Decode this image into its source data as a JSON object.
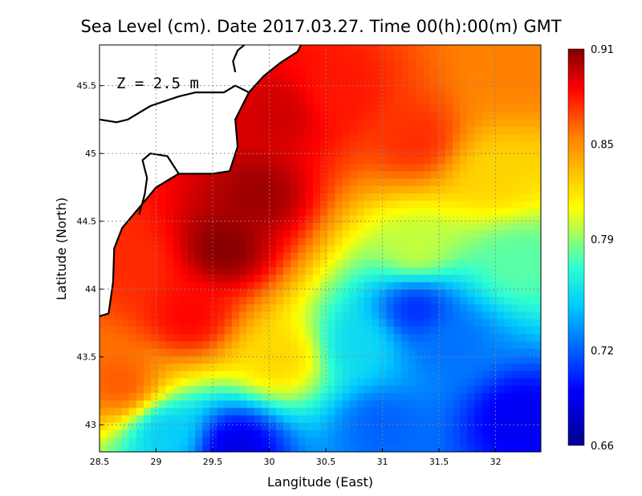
{
  "chart_data": {
    "type": "heatmap",
    "title": "Sea Level (cm). Date 2017.03.27. Time 00(h):00(m) GMT",
    "xlabel": "Langitude (East)",
    "ylabel": "Latitude (North)",
    "annotation": "Z = 2.5 m",
    "xlim": [
      28.5,
      32.4
    ],
    "ylim": [
      42.8,
      45.8
    ],
    "x_ticks": [
      28.5,
      29,
      29.5,
      30,
      30.5,
      31,
      31.5,
      32
    ],
    "x_tick_labels": [
      "28.5",
      "29",
      "29.5",
      "30",
      "30.5",
      "31",
      "31.5",
      "32"
    ],
    "y_ticks": [
      43,
      43.5,
      44,
      44.5,
      45,
      45.5
    ],
    "y_tick_labels": [
      "43",
      "43.5",
      "44",
      "44.5",
      "45",
      "45.5"
    ],
    "grid": true,
    "colorbar": {
      "min": 0.66,
      "max": 0.91,
      "ticks": [
        0.91,
        0.85,
        0.79,
        0.72,
        0.66
      ],
      "tick_labels": [
        "0.91",
        "0.85",
        "0.79",
        "0.72",
        "0.66"
      ],
      "colormap": [
        "#00008f",
        "#0000ff",
        "#00c8ff",
        "#30ffd0",
        "#ffff00",
        "#ff8000",
        "#ff0000",
        "#800000"
      ]
    },
    "field_centers": [
      {
        "lon": 29.6,
        "lat": 44.3,
        "value": 0.91
      },
      {
        "lon": 29.9,
        "lat": 44.7,
        "value": 0.905
      },
      {
        "lon": 30.1,
        "lat": 45.3,
        "value": 0.895
      },
      {
        "lon": 29.3,
        "lat": 43.8,
        "value": 0.885
      },
      {
        "lon": 30.6,
        "lat": 45.45,
        "value": 0.88
      },
      {
        "lon": 31.3,
        "lat": 45.1,
        "value": 0.875
      },
      {
        "lon": 28.8,
        "lat": 44.2,
        "value": 0.875
      },
      {
        "lon": 28.7,
        "lat": 43.3,
        "value": 0.865
      },
      {
        "lon": 32.2,
        "lat": 45.6,
        "value": 0.855
      },
      {
        "lon": 32.0,
        "lat": 44.85,
        "value": 0.825
      },
      {
        "lon": 30.1,
        "lat": 43.5,
        "value": 0.825
      },
      {
        "lon": 31.3,
        "lat": 44.3,
        "value": 0.8
      },
      {
        "lon": 32.2,
        "lat": 44.2,
        "value": 0.78
      },
      {
        "lon": 30.8,
        "lat": 43.6,
        "value": 0.755
      },
      {
        "lon": 31.3,
        "lat": 43.85,
        "value": 0.705
      },
      {
        "lon": 31.6,
        "lat": 43.6,
        "value": 0.725
      },
      {
        "lon": 32.2,
        "lat": 43.05,
        "value": 0.69
      },
      {
        "lon": 31.0,
        "lat": 43.0,
        "value": 0.72
      },
      {
        "lon": 29.7,
        "lat": 42.85,
        "value": 0.685
      },
      {
        "lon": 29.1,
        "lat": 42.95,
        "value": 0.75
      }
    ],
    "coastline": [
      [
        [
          28.5,
          43.8
        ],
        [
          28.58,
          43.82
        ],
        [
          28.62,
          44.05
        ],
        [
          28.63,
          44.3
        ],
        [
          28.7,
          44.45
        ],
        [
          28.85,
          44.6
        ],
        [
          29.0,
          44.75
        ],
        [
          29.2,
          44.85
        ],
        [
          29.5,
          44.85
        ],
        [
          29.65,
          44.87
        ],
        [
          29.72,
          45.05
        ],
        [
          29.7,
          45.25
        ],
        [
          29.82,
          45.45
        ],
        [
          29.95,
          45.57
        ],
        [
          30.1,
          45.67
        ],
        [
          30.25,
          45.75
        ],
        [
          30.28,
          45.8
        ]
      ],
      [
        [
          28.5,
          45.25
        ],
        [
          28.65,
          45.23
        ],
        [
          28.75,
          45.25
        ],
        [
          28.95,
          45.35
        ],
        [
          29.2,
          45.42
        ],
        [
          29.35,
          45.45
        ],
        [
          29.6,
          45.45
        ],
        [
          29.7,
          45.5
        ],
        [
          29.82,
          45.45
        ]
      ],
      [
        [
          28.85,
          44.55
        ],
        [
          28.9,
          44.7
        ],
        [
          28.92,
          44.82
        ],
        [
          28.88,
          44.95
        ],
        [
          28.95,
          45.0
        ],
        [
          29.1,
          44.98
        ],
        [
          29.2,
          44.85
        ]
      ],
      [
        [
          29.7,
          45.6
        ],
        [
          29.68,
          45.68
        ],
        [
          29.72,
          45.76
        ],
        [
          29.78,
          45.8
        ]
      ]
    ]
  }
}
